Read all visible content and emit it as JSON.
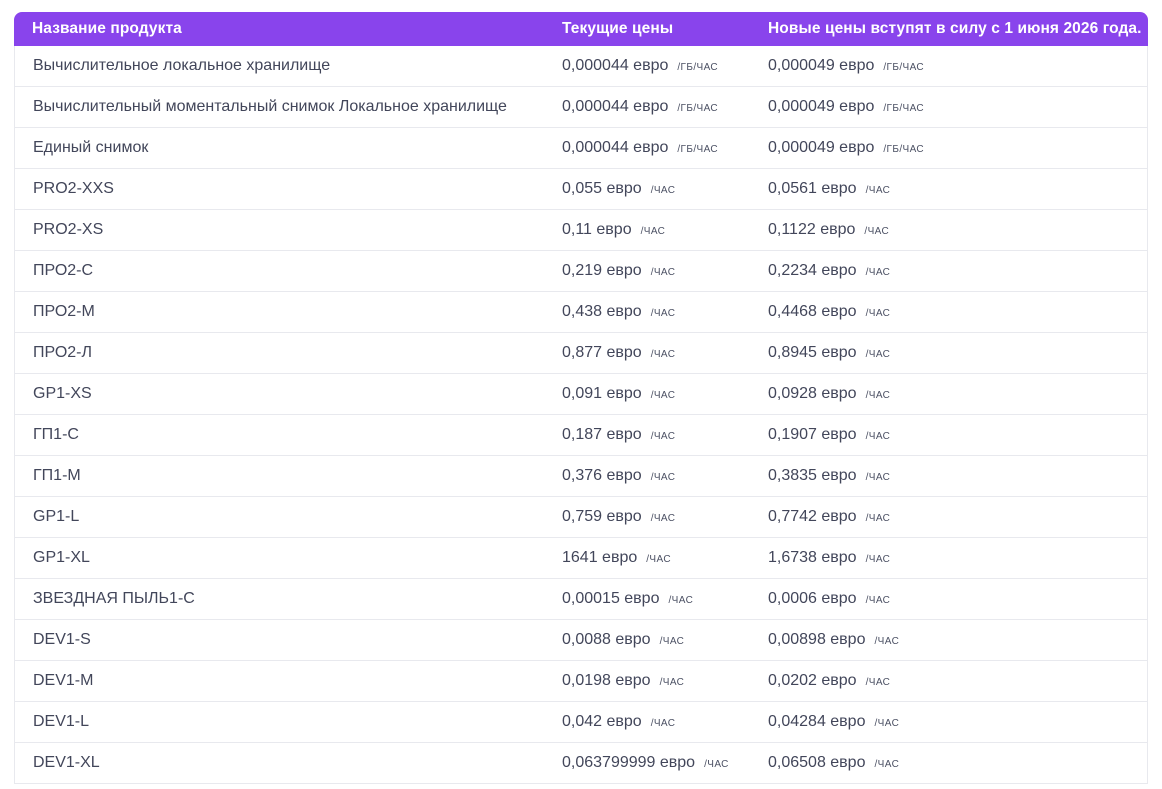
{
  "colors": {
    "accent": "#8944EC",
    "header_text": "#FFFFFF",
    "text_main": "#42465A",
    "text_muted": "#4B5063",
    "border": "#E8E9EE"
  },
  "table": {
    "headers": {
      "product": "Название продукта",
      "current": "Текущие цены",
      "new": "Новые цены вступят в силу с 1 июня 2026 года."
    },
    "rows": [
      {
        "name": "Вычислительное локальное хранилище",
        "current": "0,000044 евро",
        "current_unit": "/ГБ/ЧАС",
        "new": "0,000049 евро",
        "new_unit": "/ГБ/ЧАС"
      },
      {
        "name": "Вычислительный моментальный снимок Локальное хранилище",
        "current": "0,000044 евро",
        "current_unit": "/ГБ/ЧАС",
        "new": "0,000049 евро",
        "new_unit": "/ГБ/ЧАС"
      },
      {
        "name": "Единый снимок",
        "current": "0,000044 евро",
        "current_unit": "/ГБ/ЧАС",
        "new": "0,000049 евро",
        "new_unit": "/ГБ/ЧАС"
      },
      {
        "name": "PRO2-XXS",
        "current": "0,055 евро",
        "current_unit": "/ЧАС",
        "new": "0,0561 евро",
        "new_unit": "/ЧАС"
      },
      {
        "name": "PRO2-XS",
        "current": "0,11 евро",
        "current_unit": "/ЧАС",
        "new": "0,1122 евро",
        "new_unit": "/ЧАС"
      },
      {
        "name": "ПРО2-С",
        "current": "0,219 евро",
        "current_unit": "/ЧАС",
        "new": "0,2234 евро",
        "new_unit": "/ЧАС"
      },
      {
        "name": "ПРО2-М",
        "current": "0,438 евро",
        "current_unit": "/ЧАС",
        "new": "0,4468 евро",
        "new_unit": "/ЧАС"
      },
      {
        "name": "ПРО2-Л",
        "current": "0,877 евро",
        "current_unit": "/ЧАС",
        "new": "0,8945 евро",
        "new_unit": "/ЧАС"
      },
      {
        "name": "GP1-XS",
        "current": "0,091 евро",
        "current_unit": "/ЧАС",
        "new": "0,0928 евро",
        "new_unit": "/ЧАС"
      },
      {
        "name": "ГП1-С",
        "current": "0,187 евро",
        "current_unit": "/ЧАС",
        "new": "0,1907 евро",
        "new_unit": "/ЧАС"
      },
      {
        "name": "ГП1-М",
        "current": "0,376 евро",
        "current_unit": "/ЧАС",
        "new": "0,3835 евро",
        "new_unit": "/ЧАС"
      },
      {
        "name": "GP1-L",
        "current": "0,759 евро",
        "current_unit": "/ЧАС",
        "new": "0,7742 евро",
        "new_unit": "/ЧАС"
      },
      {
        "name": "GP1-XL",
        "current": "1641 евро",
        "current_unit": "/ЧАС",
        "new": "1,6738 евро",
        "new_unit": "/ЧАС"
      },
      {
        "name": "ЗВЕЗДНАЯ ПЫЛЬ1-С",
        "current": "0,00015 евро",
        "current_unit": "/ЧАС",
        "new": "0,0006 евро",
        "new_unit": "/ЧАС"
      },
      {
        "name": "DEV1-S",
        "current": "0,0088 евро",
        "current_unit": "/ЧАС",
        "new": "0,00898 евро",
        "new_unit": "/ЧАС"
      },
      {
        "name": "DEV1-M",
        "current": "0,0198 евро",
        "current_unit": "/ЧАС",
        "new": "0,0202 евро",
        "new_unit": "/ЧАС"
      },
      {
        "name": "DEV1-L",
        "current": "0,042 евро",
        "current_unit": "/ЧАС",
        "new": "0,04284 евро",
        "new_unit": "/ЧАС"
      },
      {
        "name": "DEV1-XL",
        "current": "0,063799999 евро",
        "current_unit": "/ЧАС",
        "new": "0,06508 евро",
        "new_unit": "/ЧАС"
      }
    ]
  }
}
